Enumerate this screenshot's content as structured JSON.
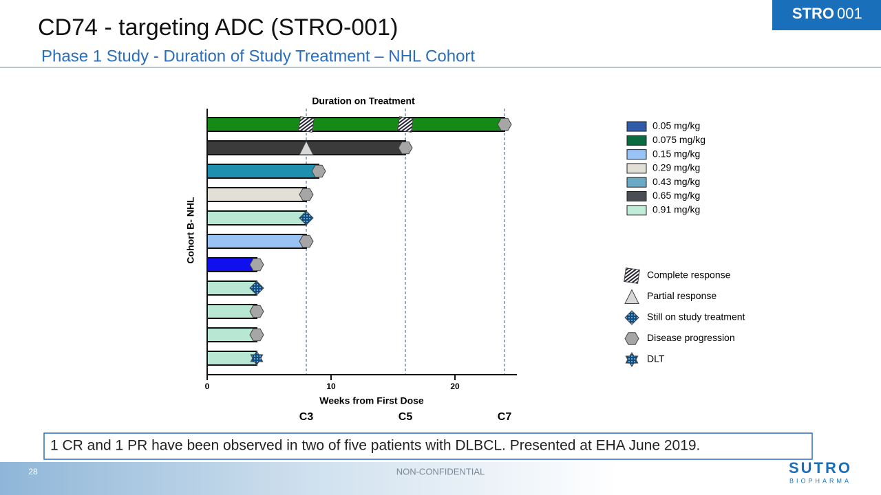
{
  "slide": {
    "title": "CD74 - targeting ADC (STRO-001)",
    "subtitle": "Phase 1 Study - Duration of Study Treatment – NHL Cohort",
    "badge_bold": "STRO",
    "badge_light": "001",
    "note": "1 CR and 1 PR have been observed in two of five patients with DLBCL. Presented at EHA June 2019.",
    "page": "28",
    "footer": "NON-CONFIDENTIAL",
    "logo": "SUTRO",
    "logo_sub": "BIOPHARMA"
  },
  "chart_data": {
    "type": "swimmer",
    "title": "Duration on Treatment",
    "x_label": "Weeks from First Dose",
    "y_label": "Cohort B- NHL",
    "xlim": [
      0,
      25
    ],
    "xticks": [
      0,
      10,
      20
    ],
    "cycle_lines": [
      {
        "value": 8,
        "label": "C3"
      },
      {
        "value": 16,
        "label": "C5"
      },
      {
        "value": 24,
        "label": "C7"
      }
    ],
    "bars": [
      {
        "value": 24,
        "color": "#168a16",
        "markers": [
          {
            "x": 8,
            "event": "Complete response"
          },
          {
            "x": 16,
            "event": "Complete response"
          },
          {
            "x": 24,
            "event": "Disease progression"
          }
        ]
      },
      {
        "value": 16,
        "color": "#3b3b3b",
        "markers": [
          {
            "x": 8,
            "event": "Partial response"
          },
          {
            "x": 16,
            "event": "Disease progression"
          }
        ]
      },
      {
        "value": 9,
        "color": "#1f8fb0",
        "markers": [
          {
            "x": 9,
            "event": "Disease progression"
          }
        ]
      },
      {
        "value": 8,
        "color": "#e2e0d6",
        "markers": [
          {
            "x": 8,
            "event": "Disease progression"
          }
        ]
      },
      {
        "value": 8,
        "color": "#b8e8d4",
        "markers": [
          {
            "x": 8,
            "event": "Still on study treatment"
          }
        ]
      },
      {
        "value": 8,
        "color": "#99c2f5",
        "markers": [
          {
            "x": 8,
            "event": "Disease progression"
          }
        ]
      },
      {
        "value": 4,
        "color": "#1010ee",
        "markers": [
          {
            "x": 4,
            "event": "Disease progression"
          }
        ]
      },
      {
        "value": 4,
        "color": "#b8e8d4",
        "markers": [
          {
            "x": 4,
            "event": "Still on study treatment"
          }
        ]
      },
      {
        "value": 4,
        "color": "#b8e8d4",
        "markers": [
          {
            "x": 4,
            "event": "Disease progression"
          }
        ]
      },
      {
        "value": 4,
        "color": "#b8e8d4",
        "markers": [
          {
            "x": 4,
            "event": "Disease progression"
          }
        ]
      },
      {
        "value": 4,
        "color": "#b8e8d4",
        "markers": [
          {
            "x": 4,
            "event": "DLT"
          }
        ]
      }
    ],
    "dose_legend": [
      {
        "name": "0.05 mg/kg",
        "color": "#2e5aa8"
      },
      {
        "name": "0.075 mg/kg",
        "color": "#0b6b40"
      },
      {
        "name": "0.15 mg/kg",
        "color": "#99c2f5"
      },
      {
        "name": "0.29 mg/kg",
        "color": "#e2e0d6"
      },
      {
        "name": "0.43 mg/kg",
        "color": "#6aaac4"
      },
      {
        "name": "0.65 mg/kg",
        "color": "#4a4e54"
      },
      {
        "name": "0.91 mg/kg",
        "color": "#c0ecd8"
      }
    ],
    "events": [
      "Complete response",
      "Partial response",
      "Still on study treatment",
      "Disease progression",
      "DLT"
    ]
  }
}
